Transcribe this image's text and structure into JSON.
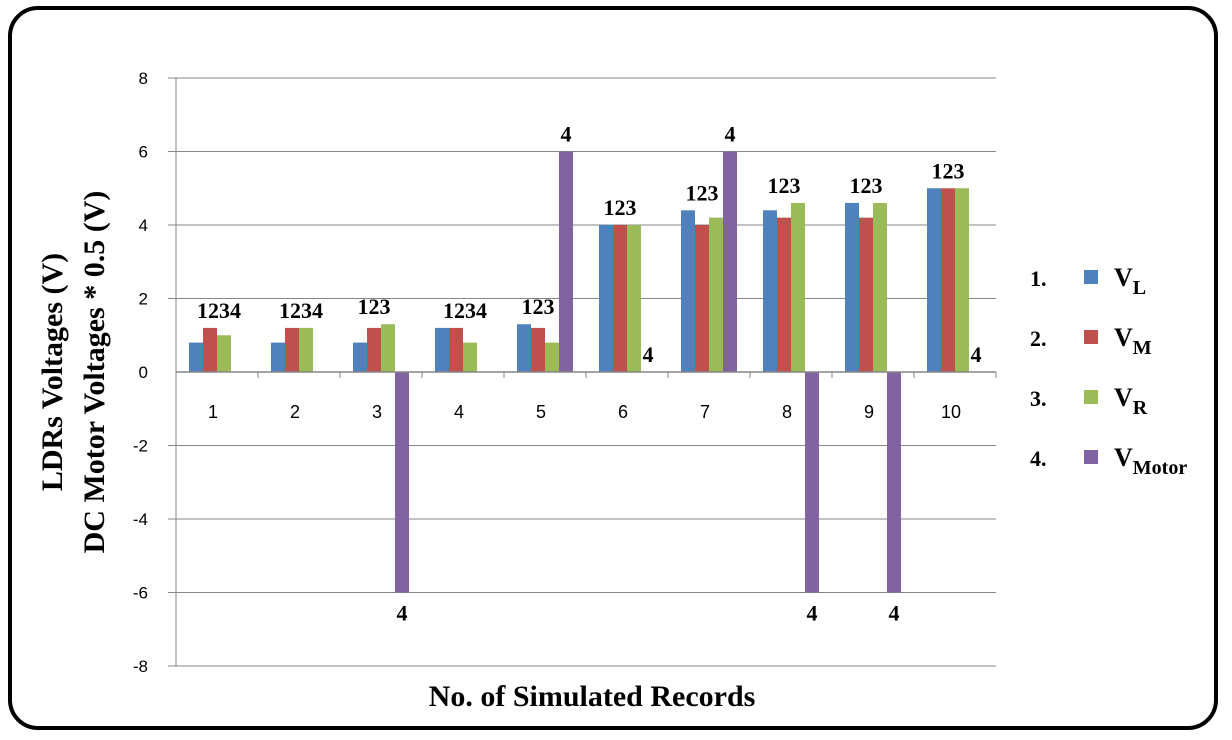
{
  "chart_data": {
    "type": "bar",
    "ylabel_line1": "LDRs Voltages (V)",
    "ylabel_line2": "DC Motor Voltages * 0.5 (V)",
    "xlabel": "No. of Simulated Records",
    "categories": [
      "1",
      "2",
      "3",
      "4",
      "5",
      "6",
      "7",
      "8",
      "9",
      "10"
    ],
    "ylim": [
      -8,
      8
    ],
    "yticks": [
      "8",
      "6",
      "4",
      "2",
      "0",
      "-2",
      "-4",
      "-6",
      "-8"
    ],
    "grid": "horizontal",
    "legend_position": "right",
    "series": [
      {
        "number": "1.",
        "name": "V",
        "sub": "L",
        "color": "#4F81BD",
        "values": [
          0.8,
          0.8,
          0.8,
          1.2,
          1.3,
          4.0,
          4.4,
          4.4,
          4.6,
          5.0
        ]
      },
      {
        "number": "2.",
        "name": "V",
        "sub": "M",
        "color": "#C0504D",
        "values": [
          1.2,
          1.2,
          1.2,
          1.2,
          1.2,
          4.0,
          4.0,
          4.2,
          4.2,
          5.0
        ]
      },
      {
        "number": "3.",
        "name": "V",
        "sub": "R",
        "color": "#9BBB59",
        "values": [
          1.0,
          1.2,
          1.3,
          0.8,
          0.8,
          4.0,
          4.2,
          4.6,
          4.6,
          5.0
        ]
      },
      {
        "number": "4.",
        "name": "V",
        "sub": "Motor",
        "color": "#8064A2",
        "values": [
          0,
          0,
          -6,
          0,
          6,
          0,
          6,
          -6,
          -6,
          0
        ]
      }
    ],
    "annotations": [
      {
        "text": "1234",
        "position": "above",
        "category": 0
      },
      {
        "text": "1234",
        "position": "above",
        "category": 1
      },
      {
        "text": "123",
        "position": "above",
        "category": 2
      },
      {
        "text": "4",
        "position": "below-motor",
        "category": 2
      },
      {
        "text": "1234",
        "position": "above",
        "category": 3
      },
      {
        "text": "123",
        "position": "above",
        "category": 4
      },
      {
        "text": "4",
        "position": "above-motor",
        "category": 4
      },
      {
        "text": "123",
        "position": "above",
        "category": 5
      },
      {
        "text": "4",
        "position": "right",
        "category": 5
      },
      {
        "text": "123",
        "position": "above",
        "category": 6
      },
      {
        "text": "4",
        "position": "above-motor",
        "category": 6
      },
      {
        "text": "123",
        "position": "above",
        "category": 7
      },
      {
        "text": "4",
        "position": "below-motor",
        "category": 7
      },
      {
        "text": "123",
        "position": "above",
        "category": 8
      },
      {
        "text": "4",
        "position": "below-motor",
        "category": 8
      },
      {
        "text": "123",
        "position": "above",
        "category": 9
      },
      {
        "text": "4",
        "position": "right",
        "category": 9
      }
    ]
  }
}
